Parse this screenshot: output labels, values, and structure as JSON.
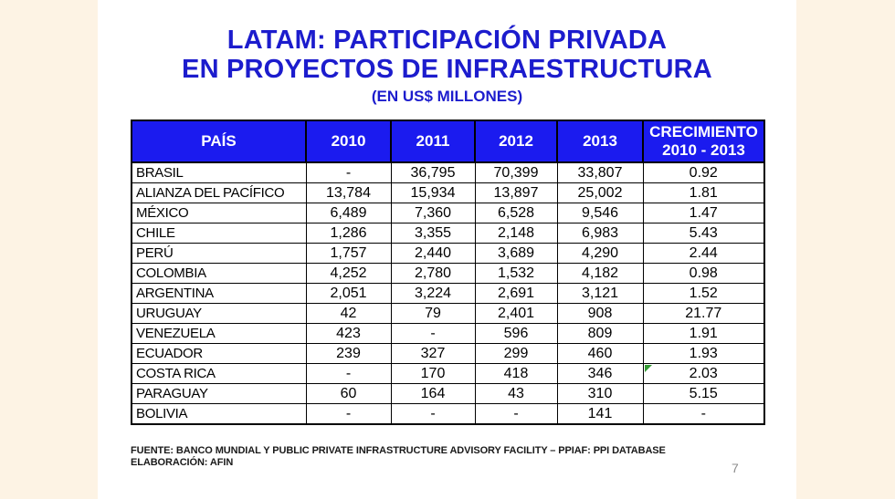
{
  "slide": {
    "title_line1": "LATAM: PARTICIPACIÓN PRIVADA",
    "title_line2": "EN PROYECTOS DE INFRAESTRUCTURA",
    "subtitle": "(EN US$ MILLONES)",
    "footer_line1": "FUENTE: BANCO MUNDIAL Y PUBLIC PRIVATE INFRASTRUCTURE ADVISORY FACILITY – PPIAF: PPI DATABASE",
    "footer_line2": "ELABORACIÓN: AFIN",
    "page_number": "7"
  },
  "colors": {
    "title_blue": "#1c1ccd",
    "header_blue": "#1b1bef",
    "background_cream": "#fdf3e4",
    "table_border": "#000000",
    "flag_green": "#339933",
    "page_number_gray": "#8c8c8c"
  },
  "table": {
    "columns": [
      "PAÍS",
      "2010",
      "2011",
      "2012",
      "2013",
      "CRECIMIENTO\n2010 - 2013"
    ],
    "rows": [
      {
        "cells": [
          "BRASIL",
          "-",
          "36,795",
          "70,399",
          "33,807",
          "0.92"
        ]
      },
      {
        "cells": [
          "ALIANZA DEL PACÍFICO",
          "13,784",
          "15,934",
          "13,897",
          "25,002",
          "1.81"
        ]
      },
      {
        "cells": [
          "MÉXICO",
          "6,489",
          "7,360",
          "6,528",
          "9,546",
          "1.47"
        ]
      },
      {
        "cells": [
          "CHILE",
          "1,286",
          "3,355",
          "2,148",
          "6,983",
          "5.43"
        ]
      },
      {
        "cells": [
          "PERÚ",
          "1,757",
          "2,440",
          "3,689",
          "4,290",
          "2.44"
        ]
      },
      {
        "cells": [
          "COLOMBIA",
          "4,252",
          "2,780",
          "1,532",
          "4,182",
          "0.98"
        ]
      },
      {
        "cells": [
          "ARGENTINA",
          "2,051",
          "3,224",
          "2,691",
          "3,121",
          "1.52"
        ]
      },
      {
        "cells": [
          "URUGUAY",
          "42",
          "79",
          "2,401",
          "908",
          "21.77"
        ]
      },
      {
        "cells": [
          "VENEZUELA",
          "423",
          "-",
          "596",
          "809",
          "1.91"
        ]
      },
      {
        "cells": [
          "ECUADOR",
          "239",
          "327",
          "299",
          "460",
          "1.93"
        ]
      },
      {
        "cells": [
          "COSTA RICA",
          "-",
          "170",
          "418",
          "346",
          "2.03"
        ],
        "flag_col": 5
      },
      {
        "cells": [
          "PARAGUAY",
          "60",
          "164",
          "43",
          "310",
          "5.15"
        ]
      },
      {
        "cells": [
          "BOLIVIA",
          "-",
          "-",
          "-",
          "141",
          "-"
        ]
      }
    ]
  }
}
